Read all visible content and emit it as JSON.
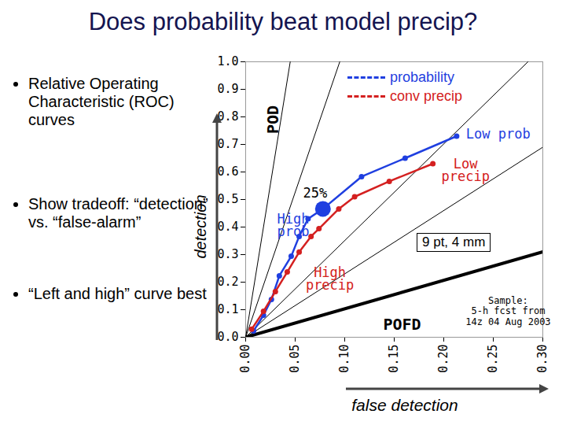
{
  "chart_data": {
    "type": "line",
    "title": "Does probability beat model precip?",
    "bullets": [
      "Relative Operating Characteristic (ROC) curves",
      "Show tradeoff: “detection” vs. “false-alarm”",
      "“Left and high” curve best"
    ],
    "x_label": "POFD",
    "x_axis_title": "false detection",
    "y_label": "POD",
    "y_axis_title": "detection",
    "xlim": [
      0,
      0.3
    ],
    "xticks": [
      {
        "value": 0,
        "label": "0.00"
      },
      {
        "value": 0.05,
        "label": "0.05"
      },
      {
        "value": 0.1,
        "label": "0.10"
      },
      {
        "value": 0.15,
        "label": "0.15"
      },
      {
        "value": 0.2,
        "label": "0.20"
      },
      {
        "value": 0.25,
        "label": "0.25"
      },
      {
        "value": 0.3,
        "label": "0.30"
      }
    ],
    "ylim": [
      0,
      1
    ],
    "yticks": [
      {
        "value": 0,
        "label": "0.0"
      },
      {
        "value": 0.1,
        "label": "0.1"
      },
      {
        "value": 0.2,
        "label": "0.2"
      },
      {
        "value": 0.3,
        "label": "0.3"
      },
      {
        "value": 0.4,
        "label": "0.4"
      },
      {
        "value": 0.5,
        "label": "0.5"
      },
      {
        "value": 0.6,
        "label": "0.6"
      },
      {
        "value": 0.7,
        "label": "0.7"
      },
      {
        "value": 0.8,
        "label": "0.8"
      },
      {
        "value": 0.9,
        "label": "0.9"
      },
      {
        "value": 1,
        "label": "1.0"
      }
    ],
    "grid": false,
    "legend": "top-right",
    "series": [
      {
        "name": "probability",
        "color": "#1f3fe0",
        "marker": "circle",
        "line_style": "dashed",
        "x": [
          0.008,
          0.018,
          0.026,
          0.034,
          0.046,
          0.054,
          0.063,
          0.078,
          0.117,
          0.161,
          0.213
        ],
        "values": [
          0.023,
          0.08,
          0.137,
          0.223,
          0.294,
          0.366,
          0.43,
          0.466,
          0.583,
          0.65,
          0.73
        ]
      },
      {
        "name": "conv precip",
        "color": "#d42020",
        "marker": "circle",
        "line_style": "dashed",
        "x": [
          0.006,
          0.018,
          0.03,
          0.042,
          0.054,
          0.066,
          0.074,
          0.094,
          0.11,
          0.145,
          0.189
        ],
        "values": [
          0.029,
          0.094,
          0.166,
          0.237,
          0.309,
          0.366,
          0.394,
          0.466,
          0.51,
          0.566,
          0.63
        ]
      }
    ],
    "highlight": {
      "x": 0.078,
      "y": 0.466,
      "label": "25%",
      "color": "#1f3fe0"
    },
    "reference_lines": [
      {
        "x": [
          0,
          0.045
        ],
        "y": [
          0,
          1
        ],
        "color": "#000000"
      },
      {
        "x": [
          0,
          0.095
        ],
        "y": [
          0,
          1
        ],
        "color": "#000000"
      },
      {
        "x": [
          0,
          0.285
        ],
        "y": [
          0,
          1
        ],
        "color": "#000000"
      },
      {
        "x": [
          0,
          0.3
        ],
        "y": [
          0,
          0.69
        ],
        "color": "#000000"
      },
      {
        "x": [
          0,
          0.3
        ],
        "y": [
          0,
          0.31
        ],
        "color": "#000000",
        "line_style": "bold"
      }
    ],
    "annotations": [
      {
        "text": "Low prob",
        "color": "#1f3fe0"
      },
      {
        "text": "Low\nprecip",
        "color": "#d42020"
      },
      {
        "text": "High\nprob",
        "color": "#1f3fe0"
      },
      {
        "text": "High\nprecip",
        "color": "#d42020"
      }
    ],
    "boxed_note": "9 pt, 4 mm",
    "sample_note": "Sample:\n5-h fcst from\n14z 04 Aug 2003"
  }
}
